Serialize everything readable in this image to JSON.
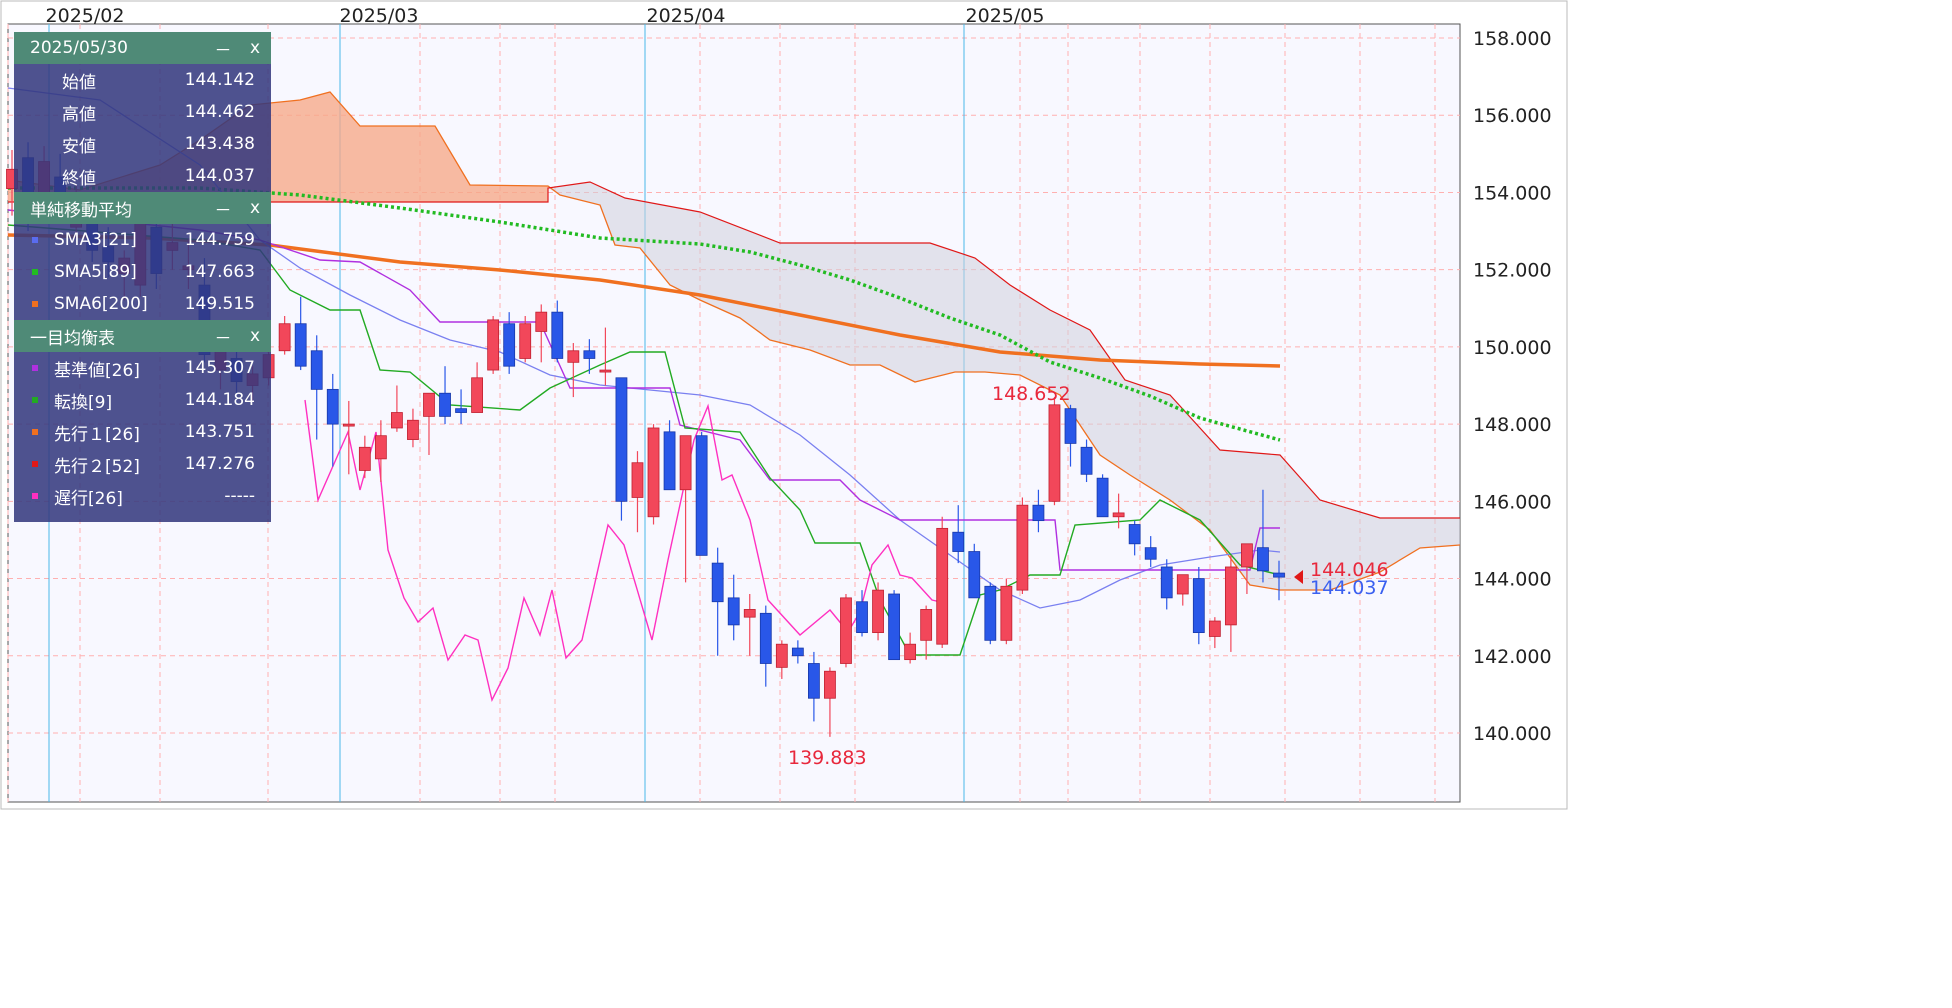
{
  "panel": {
    "date": "2025/05/30",
    "minimize": "－",
    "close": "x",
    "ohlc": [
      {
        "label": "始値",
        "value": "144.142"
      },
      {
        "label": "高値",
        "value": "144.462"
      },
      {
        "label": "安値",
        "value": "143.438"
      },
      {
        "label": "終値",
        "value": "144.037"
      }
    ],
    "sma_title": "単純移動平均",
    "sma": [
      {
        "label": "SMA3[21]",
        "value": "144.759",
        "color": "#5a6cf0"
      },
      {
        "label": "SMA5[89]",
        "value": "147.663",
        "color": "#22bb22"
      },
      {
        "label": "SMA6[200]",
        "value": "149.515",
        "color": "#f07020"
      }
    ],
    "ichimoku_title": "一目均衡表",
    "ichimoku": [
      {
        "label": "基準値[26]",
        "value": "145.307",
        "color": "#b030e0"
      },
      {
        "label": "転換[9]",
        "value": "144.184",
        "color": "#22aa22"
      },
      {
        "label": "先行１[26]",
        "value": "143.751",
        "color": "#f07020"
      },
      {
        "label": "先行２[52]",
        "value": "147.276",
        "color": "#e01818"
      },
      {
        "label": "遅行[26]",
        "value": "-----",
        "color": "#ff30c0"
      }
    ]
  },
  "chart_data": {
    "type": "candlestick",
    "x_ticks": [
      "2025/02",
      "2025/03",
      "2025/04",
      "2025/05"
    ],
    "y_ticks": [
      "140.000",
      "142.000",
      "144.000",
      "146.000",
      "148.000",
      "150.000",
      "152.000",
      "154.000",
      "156.000",
      "158.000"
    ],
    "ylim": [
      138.3,
      158.6
    ],
    "price_labels": [
      {
        "value": "148.652",
        "color": "#e8283c"
      },
      {
        "value": "139.883",
        "color": "#e8283c"
      },
      {
        "value": "144.046",
        "color": "#e8283c"
      },
      {
        "value": "144.037",
        "color": "#3a60f0"
      }
    ],
    "candles": [
      {
        "o": 154.1,
        "h": 155.1,
        "l": 153.4,
        "c": 154.6
      },
      {
        "o": 154.9,
        "h": 155.3,
        "l": 153.0,
        "c": 154.0
      },
      {
        "o": 153.8,
        "h": 155.2,
        "l": 153.5,
        "c": 154.8
      },
      {
        "o": 154.4,
        "h": 155.0,
        "l": 153.5,
        "c": 153.9
      },
      {
        "o": 153.1,
        "h": 154.2,
        "l": 152.8,
        "c": 153.9
      },
      {
        "o": 153.5,
        "h": 153.9,
        "l": 152.2,
        "c": 152.5
      },
      {
        "o": 152.6,
        "h": 153.1,
        "l": 151.8,
        "c": 152.2
      },
      {
        "o": 151.9,
        "h": 152.5,
        "l": 151.2,
        "c": 152.3
      },
      {
        "o": 151.6,
        "h": 153.6,
        "l": 151.3,
        "c": 153.4
      },
      {
        "o": 153.1,
        "h": 153.4,
        "l": 151.5,
        "c": 151.9
      },
      {
        "o": 152.5,
        "h": 153.2,
        "l": 152.0,
        "c": 152.7
      },
      {
        "o": 152.0,
        "h": 152.8,
        "l": 151.5,
        "c": 152.1
      },
      {
        "o": 151.6,
        "h": 152.3,
        "l": 149.6,
        "c": 149.8
      },
      {
        "o": 149.4,
        "h": 150.0,
        "l": 148.9,
        "c": 149.9
      },
      {
        "o": 149.7,
        "h": 150.0,
        "l": 148.5,
        "c": 149.1
      },
      {
        "o": 149.0,
        "h": 149.5,
        "l": 148.6,
        "c": 149.3
      },
      {
        "o": 149.2,
        "h": 150.1,
        "l": 149.0,
        "c": 149.8
      },
      {
        "o": 149.9,
        "h": 150.8,
        "l": 149.8,
        "c": 150.6
      },
      {
        "o": 150.6,
        "h": 151.3,
        "l": 149.4,
        "c": 149.5
      },
      {
        "o": 149.9,
        "h": 150.3,
        "l": 147.6,
        "c": 148.9
      },
      {
        "o": 148.9,
        "h": 149.3,
        "l": 146.9,
        "c": 148.0
      },
      {
        "o": 148.0,
        "h": 148.6,
        "l": 146.7,
        "c": 148.0
      },
      {
        "o": 146.8,
        "h": 147.7,
        "l": 146.6,
        "c": 147.4
      },
      {
        "o": 147.1,
        "h": 148.1,
        "l": 146.5,
        "c": 147.7
      },
      {
        "o": 147.9,
        "h": 149.0,
        "l": 147.8,
        "c": 148.3
      },
      {
        "o": 147.6,
        "h": 148.4,
        "l": 147.4,
        "c": 148.1
      },
      {
        "o": 148.2,
        "h": 148.7,
        "l": 147.2,
        "c": 148.8
      },
      {
        "o": 148.8,
        "h": 149.5,
        "l": 148.0,
        "c": 148.2
      },
      {
        "o": 148.4,
        "h": 148.9,
        "l": 148.0,
        "c": 148.3
      },
      {
        "o": 148.3,
        "h": 149.6,
        "l": 148.3,
        "c": 149.2
      },
      {
        "o": 149.4,
        "h": 150.8,
        "l": 149.3,
        "c": 150.7
      },
      {
        "o": 150.6,
        "h": 150.9,
        "l": 149.3,
        "c": 149.5
      },
      {
        "o": 149.7,
        "h": 150.8,
        "l": 149.6,
        "c": 150.6
      },
      {
        "o": 150.4,
        "h": 151.1,
        "l": 149.6,
        "c": 150.9
      },
      {
        "o": 150.9,
        "h": 151.2,
        "l": 149.6,
        "c": 149.7
      },
      {
        "o": 149.6,
        "h": 150.1,
        "l": 148.7,
        "c": 149.9
      },
      {
        "o": 149.9,
        "h": 150.2,
        "l": 149.3,
        "c": 149.7
      },
      {
        "o": 149.4,
        "h": 150.5,
        "l": 149.0,
        "c": 149.4
      },
      {
        "o": 149.2,
        "h": 149.2,
        "l": 145.5,
        "c": 146.0
      },
      {
        "o": 146.1,
        "h": 147.3,
        "l": 145.2,
        "c": 147.0
      },
      {
        "o": 145.6,
        "h": 148.0,
        "l": 145.4,
        "c": 147.9
      },
      {
        "o": 147.8,
        "h": 148.1,
        "l": 146.5,
        "c": 146.3
      },
      {
        "o": 146.3,
        "h": 147.5,
        "l": 143.9,
        "c": 147.7
      },
      {
        "o": 147.7,
        "h": 147.8,
        "l": 144.6,
        "c": 144.6
      },
      {
        "o": 144.4,
        "h": 144.8,
        "l": 142.0,
        "c": 143.4
      },
      {
        "o": 143.5,
        "h": 144.1,
        "l": 142.4,
        "c": 142.8
      },
      {
        "o": 143.0,
        "h": 143.6,
        "l": 142.0,
        "c": 143.2
      },
      {
        "o": 143.1,
        "h": 143.3,
        "l": 141.2,
        "c": 141.8
      },
      {
        "o": 141.7,
        "h": 142.4,
        "l": 141.4,
        "c": 142.3
      },
      {
        "o": 142.2,
        "h": 142.4,
        "l": 141.8,
        "c": 142.0
      },
      {
        "o": 141.8,
        "h": 142.1,
        "l": 140.3,
        "c": 140.9
      },
      {
        "o": 140.9,
        "h": 141.7,
        "l": 139.9,
        "c": 141.6
      },
      {
        "o": 141.8,
        "h": 143.6,
        "l": 141.7,
        "c": 143.5
      },
      {
        "o": 143.4,
        "h": 143.7,
        "l": 142.5,
        "c": 142.6
      },
      {
        "o": 142.6,
        "h": 143.9,
        "l": 142.4,
        "c": 143.7
      },
      {
        "o": 143.6,
        "h": 143.7,
        "l": 141.9,
        "c": 141.9
      },
      {
        "o": 141.9,
        "h": 142.6,
        "l": 141.8,
        "c": 142.3
      },
      {
        "o": 142.4,
        "h": 143.3,
        "l": 141.9,
        "c": 143.2
      },
      {
        "o": 142.3,
        "h": 145.6,
        "l": 142.2,
        "c": 145.3
      },
      {
        "o": 145.2,
        "h": 145.9,
        "l": 144.4,
        "c": 144.7
      },
      {
        "o": 144.7,
        "h": 144.9,
        "l": 143.5,
        "c": 143.5
      },
      {
        "o": 143.8,
        "h": 143.9,
        "l": 142.3,
        "c": 142.4
      },
      {
        "o": 142.4,
        "h": 144.0,
        "l": 142.3,
        "c": 143.8
      },
      {
        "o": 143.7,
        "h": 146.1,
        "l": 143.6,
        "c": 145.9
      },
      {
        "o": 145.9,
        "h": 146.3,
        "l": 145.2,
        "c": 145.5
      },
      {
        "o": 146.0,
        "h": 148.7,
        "l": 145.9,
        "c": 148.5
      },
      {
        "o": 148.4,
        "h": 148.5,
        "l": 146.9,
        "c": 147.5
      },
      {
        "o": 147.4,
        "h": 147.6,
        "l": 146.5,
        "c": 146.7
      },
      {
        "o": 146.6,
        "h": 146.7,
        "l": 145.6,
        "c": 145.6
      },
      {
        "o": 145.6,
        "h": 146.2,
        "l": 145.3,
        "c": 145.7
      },
      {
        "o": 145.4,
        "h": 145.5,
        "l": 144.6,
        "c": 144.9
      },
      {
        "o": 144.8,
        "h": 145.1,
        "l": 144.3,
        "c": 144.5
      },
      {
        "o": 144.3,
        "h": 144.5,
        "l": 143.2,
        "c": 143.5
      },
      {
        "o": 143.6,
        "h": 144.1,
        "l": 143.3,
        "c": 144.1
      },
      {
        "o": 144.0,
        "h": 144.3,
        "l": 142.3,
        "c": 142.6
      },
      {
        "o": 142.5,
        "h": 143.0,
        "l": 142.2,
        "c": 142.9
      },
      {
        "o": 142.8,
        "h": 144.6,
        "l": 142.1,
        "c": 144.3
      },
      {
        "o": 144.3,
        "h": 144.9,
        "l": 143.6,
        "c": 144.9
      },
      {
        "o": 144.8,
        "h": 146.3,
        "l": 143.9,
        "c": 144.2
      },
      {
        "o": 144.142,
        "h": 144.462,
        "l": 143.438,
        "c": 144.037
      }
    ]
  }
}
